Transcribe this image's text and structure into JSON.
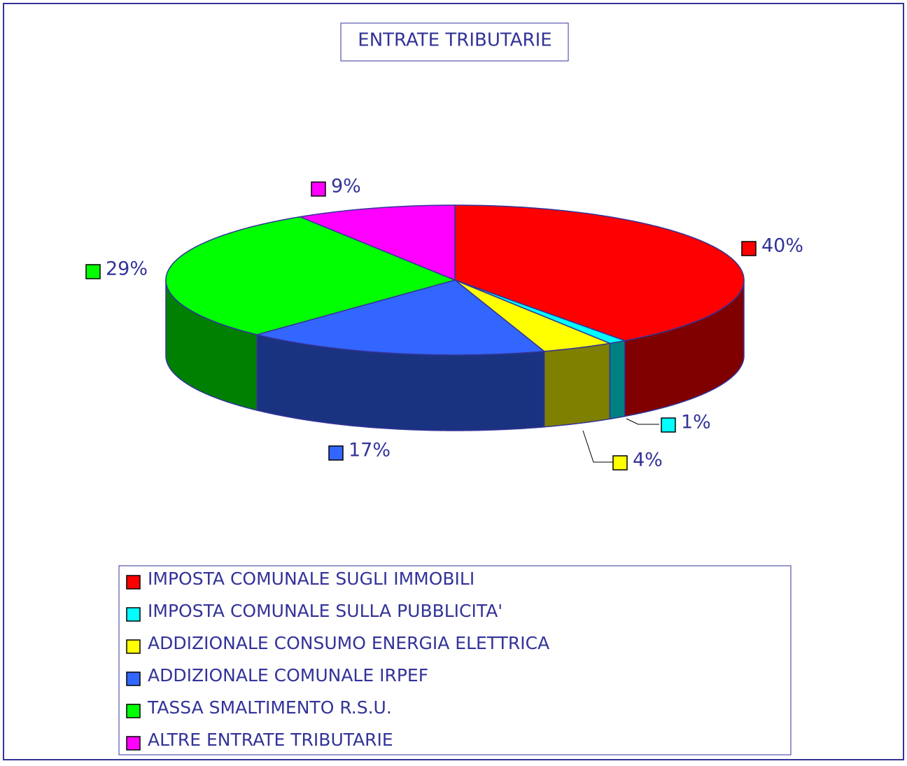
{
  "chart_data": {
    "type": "pie3d",
    "title": "ENTRATE TRIBUTARIE",
    "categories": [
      "IMPOSTA COMUNALE SUGLI IMMOBILI",
      "IMPOSTA COMUNALE SULLA PUBBLICITA'",
      "ADDIZIONALE CONSUMO ENERGIA ELETTRICA",
      "ADDIZIONALE COMUNALE IRPEF",
      "TASSA SMALTIMENTO R.S.U.",
      "ALTRE ENTRATE TRIBUTARIE"
    ],
    "values": [
      40,
      1,
      4,
      17,
      29,
      9
    ],
    "value_labels": [
      "40%",
      "1%",
      "4%",
      "17%",
      "29%",
      "9%"
    ],
    "colors": [
      "#ff0000",
      "#00ffff",
      "#ffff00",
      "#3366ff",
      "#00ff00",
      "#ff00ff"
    ],
    "side_colors": [
      "#800000",
      "#008080",
      "#808000",
      "#1a3380",
      "#008000",
      "#800080"
    ]
  }
}
